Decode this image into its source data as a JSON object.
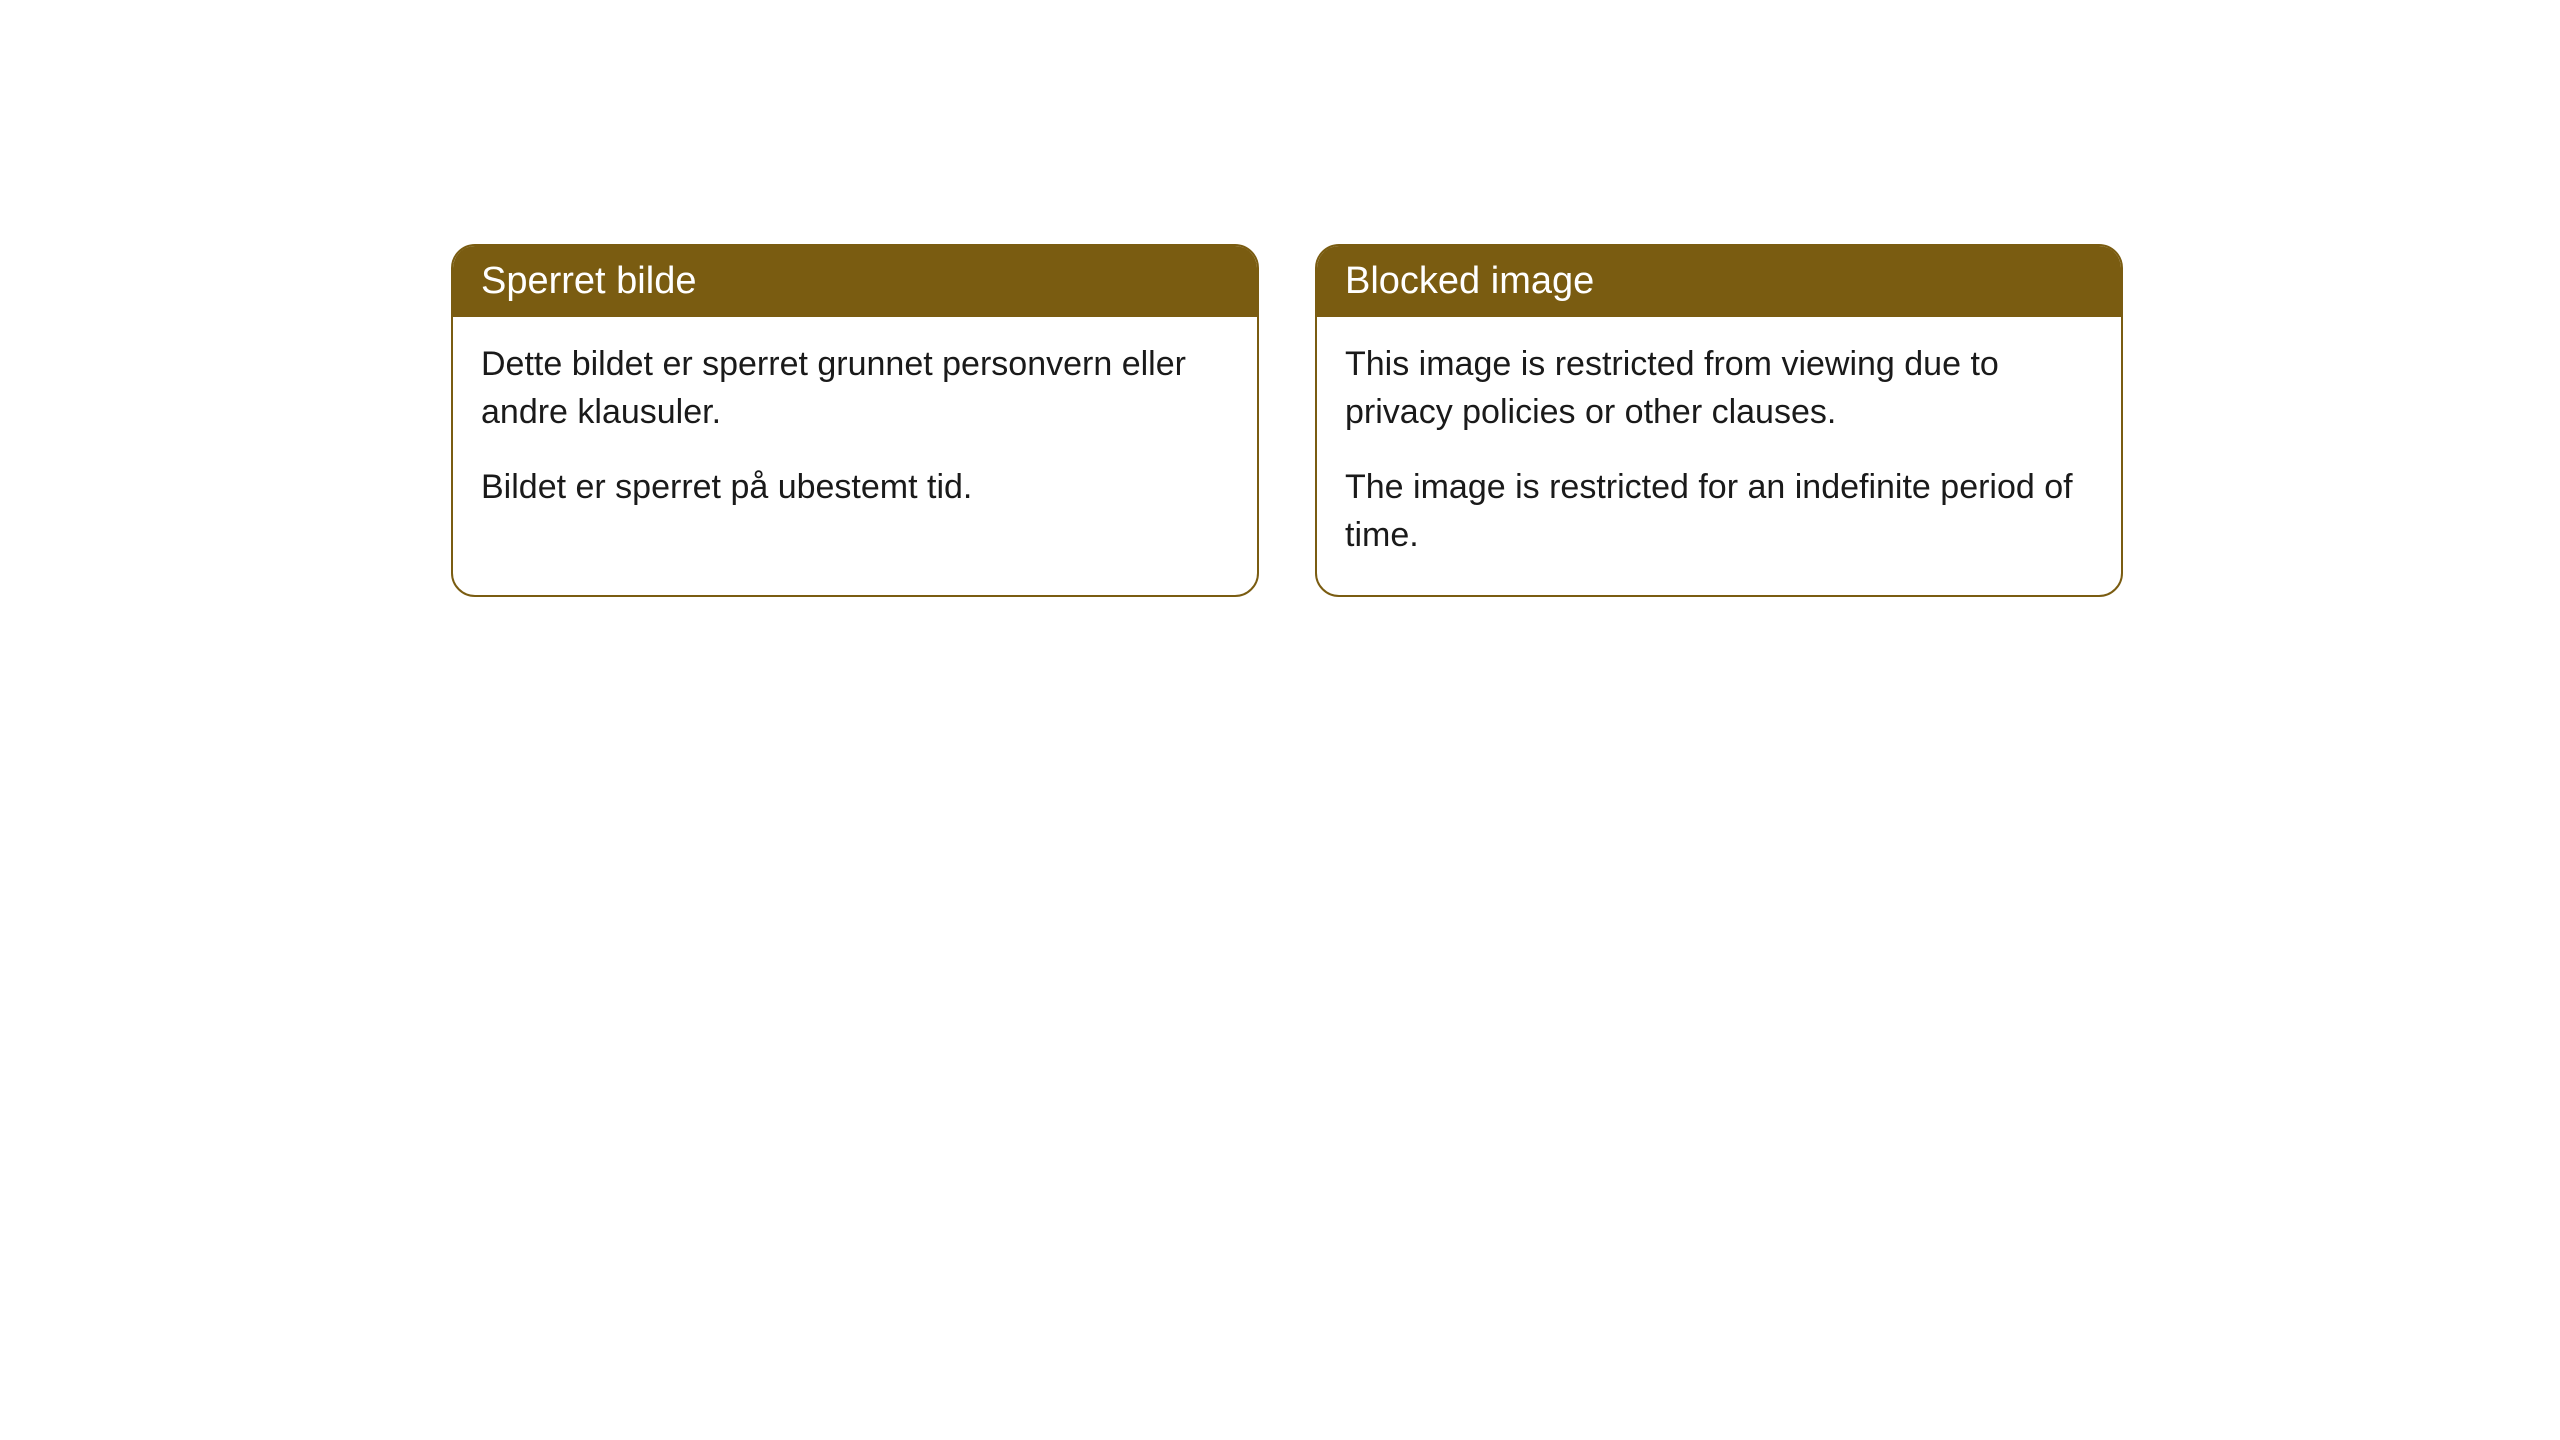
{
  "cards": [
    {
      "title": "Sperret bilde",
      "paragraphs": [
        "Dette bildet er sperret grunnet personvern eller andre klausuler.",
        "Bildet er sperret på ubestemt tid."
      ]
    },
    {
      "title": "Blocked image",
      "paragraphs": [
        "This image is restricted from viewing due to privacy policies or other clauses.",
        "The image is restricted for an indefinite period of time."
      ]
    }
  ],
  "style": {
    "header_bg_color": "#7a5c11",
    "header_text_color": "#ffffff",
    "border_color": "#7a5c11",
    "body_text_color": "#1a1a1a",
    "background_color": "#ffffff",
    "border_radius": 24,
    "header_fontsize": 38,
    "body_fontsize": 34
  }
}
